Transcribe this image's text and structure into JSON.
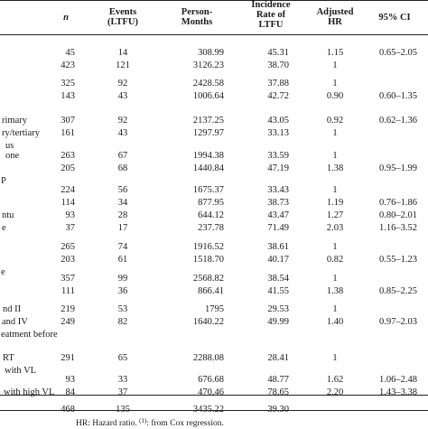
{
  "header": {
    "n": "n",
    "events": [
      "Events",
      "(LTFU)"
    ],
    "person_months": [
      "Person-",
      "Months"
    ],
    "incidence": [
      "Incidence",
      "Rate of",
      "LTFU"
    ],
    "adjusted_hr": [
      "Adjusted",
      "HR"
    ],
    "ci": "95% CI"
  },
  "rows": [
    {
      "label": "",
      "n": "45",
      "events": "14",
      "pm": "308.99",
      "ir": "45.31",
      "hr": "1.15",
      "ci": "0.65–2.05"
    },
    {
      "label": "",
      "n": "423",
      "events": "121",
      "pm": "3126.23",
      "ir": "38.70",
      "hr": "1",
      "ci": ""
    },
    {
      "label": "",
      "n": "325",
      "events": "92",
      "pm": "2428.58",
      "ir": "37.88",
      "hr": "1",
      "ci": ""
    },
    {
      "label": "",
      "n": "143",
      "events": "43",
      "pm": "1006.64",
      "ir": "42.72",
      "hr": "0.90",
      "ci": "0.60–1.35"
    },
    {
      "label": "rimary",
      "n": "307",
      "events": "92",
      "pm": "2137.25",
      "ir": "43.05",
      "hr": "0.92",
      "ci": "0.62–1.36"
    },
    {
      "label": "ry/tertiary",
      "n": "161",
      "events": "43",
      "pm": "1297.97",
      "ir": "33.13",
      "hr": "1",
      "ci": ""
    },
    {
      "label": "us",
      "n": "",
      "events": "",
      "pm": "",
      "ir": "",
      "hr": "",
      "ci": ""
    },
    {
      "label": "one",
      "n": "263",
      "events": "67",
      "pm": "1994.38",
      "ir": "33.59",
      "hr": "1",
      "ci": ""
    },
    {
      "label": "",
      "n": "205",
      "events": "68",
      "pm": "1440.84",
      "ir": "47.19",
      "hr": "1.38",
      "ci": "0.95–1.99"
    },
    {
      "label": "P",
      "n": "",
      "events": "",
      "pm": "",
      "ir": "",
      "hr": "",
      "ci": ""
    },
    {
      "label": "",
      "n": "224",
      "events": "56",
      "pm": "1675.37",
      "ir": "33.43",
      "hr": "1",
      "ci": ""
    },
    {
      "label": "",
      "n": "114",
      "events": "34",
      "pm": "877.95",
      "ir": "38.73",
      "hr": "1.19",
      "ci": "0.76–1.86"
    },
    {
      "label": "ntu",
      "n": "93",
      "events": "28",
      "pm": "644.12",
      "ir": "43.47",
      "hr": "1.27",
      "ci": "0.80–2.01"
    },
    {
      "label": "e",
      "n": "37",
      "events": "17",
      "pm": "237.78",
      "ir": "71.49",
      "hr": "2.03",
      "ci": "1.16–3.52"
    },
    {
      "label": "",
      "n": "265",
      "events": "74",
      "pm": "1916.52",
      "ir": "38.61",
      "hr": "1",
      "ci": ""
    },
    {
      "label": "",
      "n": "203",
      "events": "61",
      "pm": "1518.70",
      "ir": "40.17",
      "hr": "0.82",
      "ci": "0.55–1.23"
    },
    {
      "label": "e",
      "n": "",
      "events": "",
      "pm": "",
      "ir": "",
      "hr": "",
      "ci": ""
    },
    {
      "label": "",
      "n": "357",
      "events": "99",
      "pm": "2568.82",
      "ir": "38.54",
      "hr": "1",
      "ci": ""
    },
    {
      "label": "",
      "n": "111",
      "events": "36",
      "pm": "866.41",
      "ir": "41.55",
      "hr": "1.38",
      "ci": "0.85–2.25"
    },
    {
      "label": "nd II",
      "n": "219",
      "events": "53",
      "pm": "1795",
      "ir": "29.53",
      "hr": "1",
      "ci": ""
    },
    {
      "label": "and IV",
      "n": "249",
      "events": "82",
      "pm": "1640.22",
      "ir": "49.99",
      "hr": "1.40",
      "ci": "0.97–2.03"
    },
    {
      "label": "eatment before",
      "n": "",
      "events": "",
      "pm": "",
      "ir": "",
      "hr": "",
      "ci": ""
    },
    {
      "label": "RT",
      "n": "291",
      "events": "65",
      "pm": "2288.08",
      "ir": "28.41",
      "hr": "1",
      "ci": ""
    },
    {
      "label": "with VL",
      "n": "",
      "events": "",
      "pm": "",
      "ir": "",
      "hr": "",
      "ci": ""
    },
    {
      "label": "",
      "n": "93",
      "events": "33",
      "pm": "676.68",
      "ir": "48.77",
      "hr": "1.62",
      "ci": "1.06–2.48"
    },
    {
      "label": "with high VL",
      "n": "84",
      "events": "37",
      "pm": "470.46",
      "ir": "78.65",
      "hr": "2.20",
      "ci": "1.43–3.38"
    },
    {
      "label": "",
      "n": "468",
      "events": "135",
      "pm": "3435.22",
      "ir": "39.30",
      "hr": "",
      "ci": ""
    }
  ],
  "footnote": {
    "text_a": "HR: Hazard ratio. ",
    "sup": "(1)",
    "text_b": ": from Cox regression."
  }
}
